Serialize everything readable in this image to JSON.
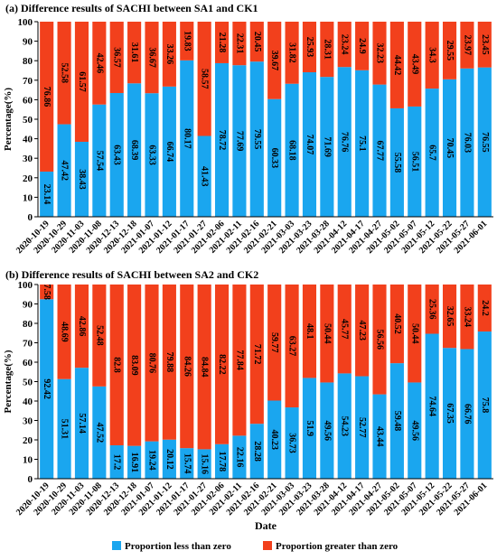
{
  "chart_data": [
    {
      "type": "bar",
      "stacked": true,
      "title": "(a) Difference results of SACHI between SA1 and CK1",
      "xlabel": "",
      "ylabel": "Percentage(%)",
      "ylim": [
        0,
        100
      ],
      "yticks": [
        0,
        10,
        20,
        30,
        40,
        50,
        60,
        70,
        80,
        90,
        100
      ],
      "categories": [
        "2020-10-19",
        "2020-10-29",
        "2020-11-03",
        "2020-11-08",
        "2020-12-13",
        "2020-12-18",
        "2021-01-07",
        "2021-01-12",
        "2021-01-17",
        "2021-01-27",
        "2021-02-06",
        "2021-02-11",
        "2021-02-16",
        "2021-02-21",
        "2021-03-03",
        "2021-03-23",
        "2021-03-28",
        "2021-04-12",
        "2021-04-17",
        "2021-04-27",
        "2021-05-02",
        "2021-05-07",
        "2021-05-12",
        "2021-05-22",
        "2021-05-27",
        "2021-06-01"
      ],
      "series": [
        {
          "name": "Proportion less than zero",
          "color": "#1aa6ef",
          "values": [
            23.14,
            47.42,
            38.43,
            57.54,
            63.43,
            68.39,
            63.33,
            66.74,
            80.17,
            41.43,
            78.72,
            77.69,
            79.55,
            60.33,
            68.18,
            74.07,
            71.69,
            76.76,
            75.1,
            67.77,
            55.58,
            56.51,
            65.7,
            70.45,
            76.03,
            76.55
          ]
        },
        {
          "name": "Proportion greater than zero",
          "color": "#f2401c",
          "values": [
            76.86,
            52.58,
            61.57,
            42.46,
            36.57,
            31.61,
            36.67,
            33.26,
            19.83,
            58.57,
            21.28,
            22.31,
            20.45,
            39.67,
            31.82,
            25.93,
            28.31,
            23.24,
            24.9,
            32.23,
            44.42,
            43.49,
            34.3,
            29.55,
            23.97,
            23.45
          ]
        }
      ]
    },
    {
      "type": "bar",
      "stacked": true,
      "title": "(b) Difference results of SACHI between SA2 and CK2",
      "xlabel": "Date",
      "ylabel": "Percentage(%)",
      "ylim": [
        0,
        100
      ],
      "yticks": [
        0,
        10,
        20,
        30,
        40,
        50,
        60,
        70,
        80,
        90,
        100
      ],
      "categories": [
        "2020-10-19",
        "2020-10-29",
        "2020-11-03",
        "2020-11-08",
        "2020-12-13",
        "2020-12-18",
        "2021-01-07",
        "2021-01-12",
        "2021-01-17",
        "2021-01-27",
        "2021-02-06",
        "2021-02-11",
        "2021-02-16",
        "2021-02-21",
        "2021-03-03",
        "2021-03-23",
        "2021-03-28",
        "2021-04-12",
        "2021-04-17",
        "2021-04-27",
        "2021-05-02",
        "2021-05-07",
        "2021-05-12",
        "2021-05-22",
        "2021-05-27",
        "2021-06-01"
      ],
      "series": [
        {
          "name": "Proportion less than zero",
          "color": "#1aa6ef",
          "values": [
            92.42,
            51.31,
            57.14,
            47.52,
            17.2,
            16.91,
            19.24,
            20.12,
            15.74,
            15.16,
            17.78,
            22.16,
            28.28,
            40.23,
            36.73,
            51.9,
            49.56,
            54.23,
            52.77,
            43.44,
            59.48,
            49.56,
            74.64,
            67.35,
            66.76,
            75.8
          ]
        },
        {
          "name": "Proportion greater than zero",
          "color": "#f2401c",
          "values": [
            7.58,
            48.69,
            42.86,
            52.48,
            82.8,
            83.09,
            80.76,
            79.88,
            84.26,
            84.84,
            82.22,
            77.84,
            71.72,
            59.77,
            63.27,
            48.1,
            50.44,
            45.77,
            47.23,
            56.56,
            40.52,
            50.44,
            25.36,
            32.65,
            33.24,
            24.2
          ]
        }
      ]
    }
  ],
  "legend": [
    {
      "label": "Proportion less than zero",
      "color": "#1aa6ef"
    },
    {
      "label": "Proportion greater than zero",
      "color": "#f2401c"
    }
  ]
}
